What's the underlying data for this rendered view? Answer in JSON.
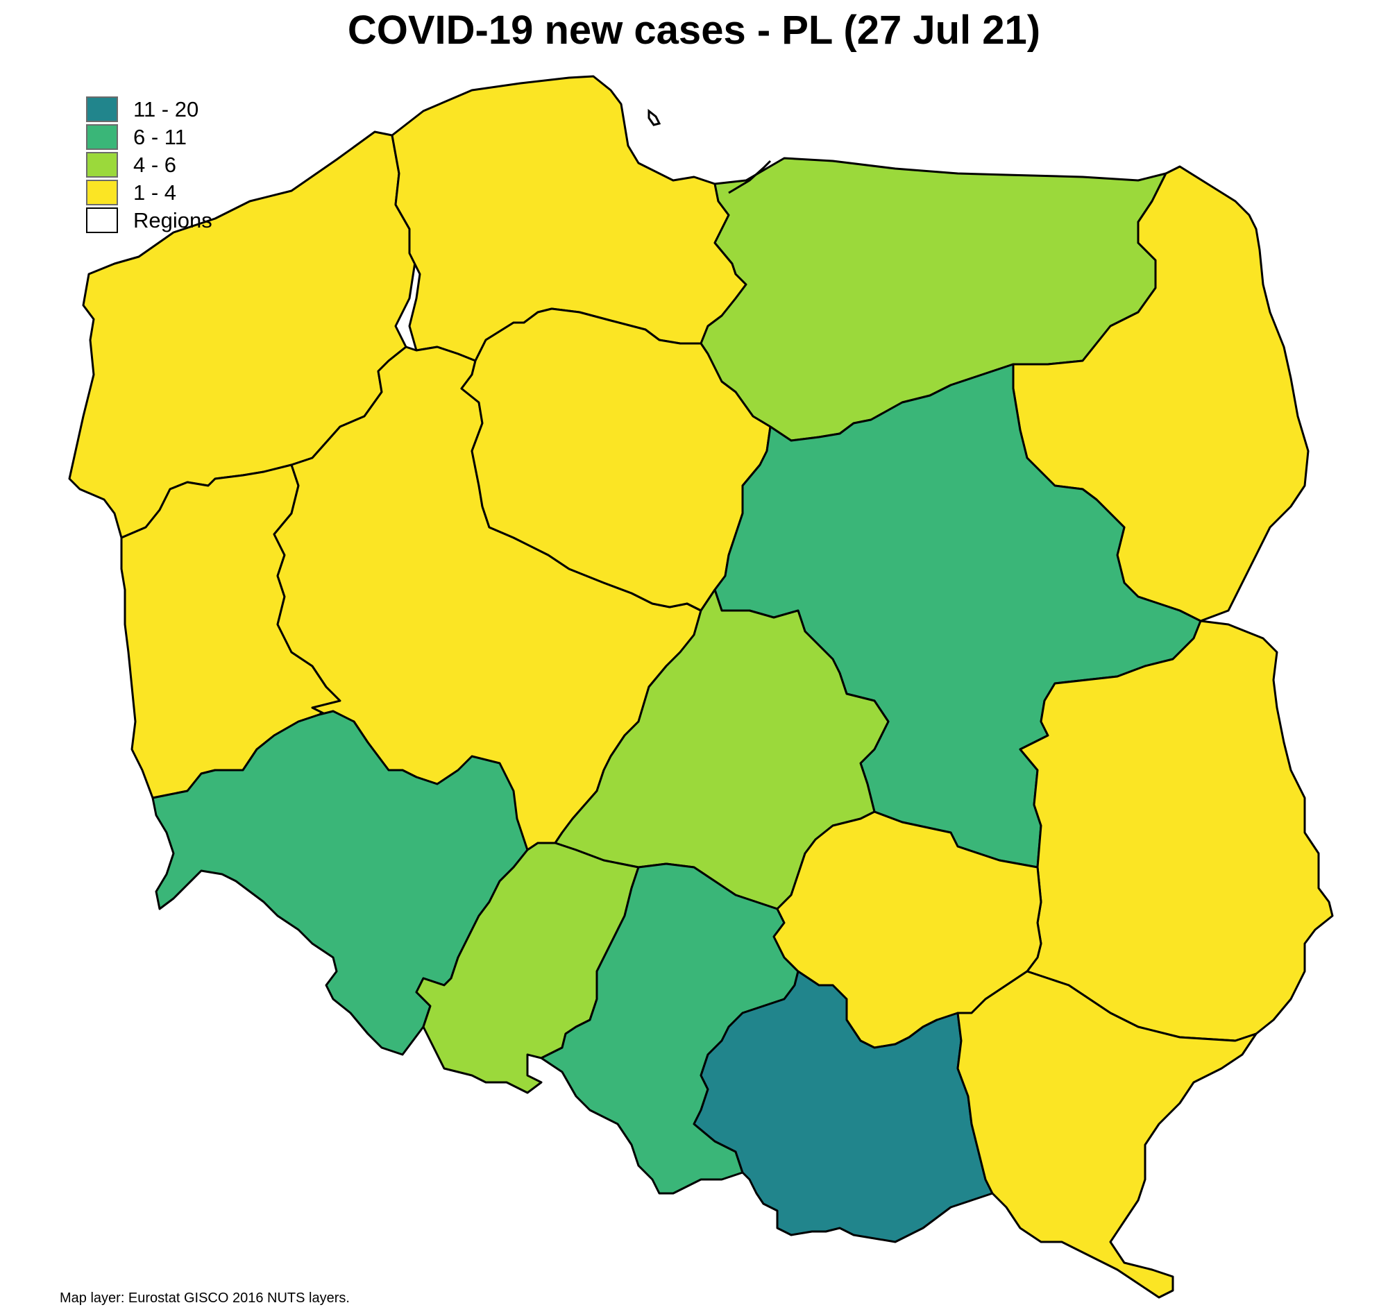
{
  "title": "COVID-19 new cases - PL (27 Jul 21)",
  "source_note": "Map layer: Eurostat GISCO 2016 NUTS layers.",
  "legend": [
    {
      "label": "11 - 20",
      "color": "#21858c"
    },
    {
      "label": "6 - 11",
      "color": "#3ab678"
    },
    {
      "label": "4 - 6",
      "color": "#9bd93b"
    },
    {
      "label": "1 - 4",
      "color": "#fbe524"
    },
    {
      "label": "Regions",
      "color": "#ffffff"
    }
  ],
  "map": {
    "regions": [
      {
        "id": "zachodniopomorskie",
        "class": "1 - 4",
        "color": "#fbe524"
      },
      {
        "id": "pomorskie",
        "class": "1 - 4",
        "color": "#fbe524"
      },
      {
        "id": "warminsko-mazurskie",
        "class": "4 - 6",
        "color": "#9bd93b"
      },
      {
        "id": "podlaskie",
        "class": "1 - 4",
        "color": "#fbe524"
      },
      {
        "id": "lubuskie",
        "class": "1 - 4",
        "color": "#fbe524"
      },
      {
        "id": "wielkopolskie",
        "class": "1 - 4",
        "color": "#fbe524"
      },
      {
        "id": "kujawsko-pomorskie",
        "class": "1 - 4",
        "color": "#fbe524"
      },
      {
        "id": "mazowieckie",
        "class": "6 - 11",
        "color": "#3ab678"
      },
      {
        "id": "lodzkie",
        "class": "4 - 6",
        "color": "#9bd93b"
      },
      {
        "id": "lubelskie",
        "class": "1 - 4",
        "color": "#fbe524"
      },
      {
        "id": "dolnoslaskie",
        "class": "6 - 11",
        "color": "#3ab678"
      },
      {
        "id": "opolskie",
        "class": "4 - 6",
        "color": "#9bd93b"
      },
      {
        "id": "slaskie",
        "class": "6 - 11",
        "color": "#3ab678"
      },
      {
        "id": "swietokrzyskie",
        "class": "1 - 4",
        "color": "#fbe524"
      },
      {
        "id": "malopolskie",
        "class": "11 - 20",
        "color": "#21858c"
      },
      {
        "id": "podkarpackie",
        "class": "1 - 4",
        "color": "#fbe524"
      }
    ]
  }
}
